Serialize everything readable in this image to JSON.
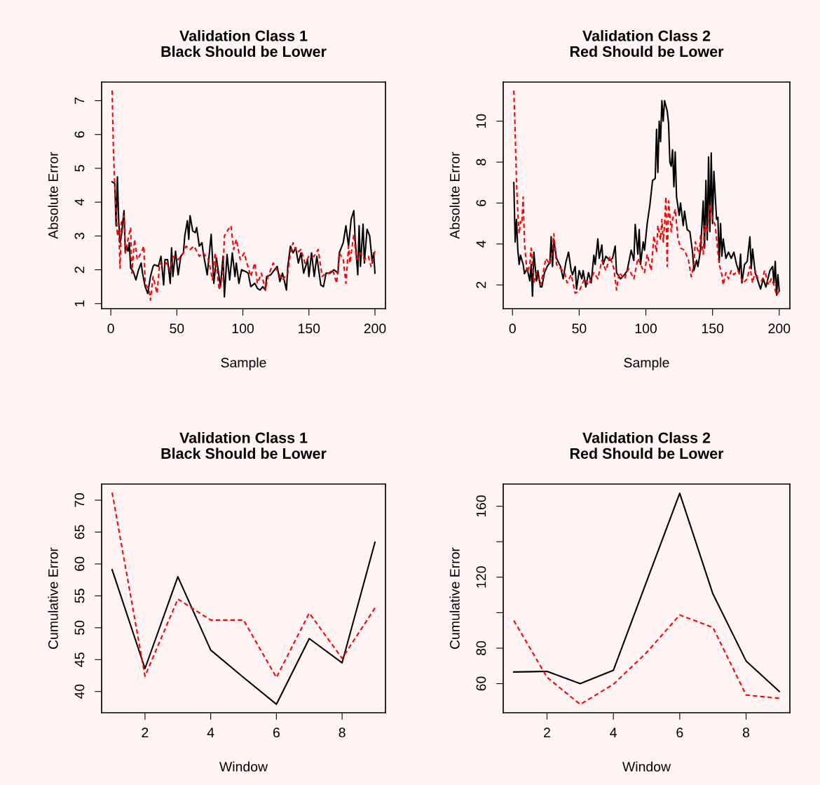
{
  "chart_data": [
    {
      "type": "line",
      "title": "Validation Class 1\nBlack Should be Lower",
      "xlabel": "Sample",
      "ylabel": "Absolute Error",
      "xlim": [
        -6.96,
        207.96
      ],
      "ylim": [
        0.85,
        7.55
      ],
      "xticks": [
        0,
        50,
        100,
        150,
        200
      ],
      "yticks": [
        1,
        2,
        3,
        4,
        5,
        6,
        7
      ],
      "series": [
        {
          "color": "#000000",
          "line_style": "solid",
          "x": [
            1,
            3,
            4,
            5,
            6,
            7,
            8,
            10,
            11,
            12,
            13,
            14,
            15,
            17,
            19,
            21,
            23,
            24,
            26,
            28,
            30,
            32,
            33,
            36,
            38,
            40,
            41,
            43,
            45,
            46,
            47,
            49,
            51,
            53,
            55,
            56,
            58,
            59,
            60,
            62,
            64,
            65,
            67,
            69,
            70,
            73,
            76,
            78,
            80,
            83,
            85,
            86,
            88,
            90,
            92,
            94,
            95,
            97,
            99,
            102,
            104,
            106,
            109,
            111,
            113,
            115,
            117,
            118,
            121,
            124,
            126,
            128,
            130,
            133,
            134,
            136,
            138,
            140,
            142,
            144,
            146,
            149,
            150,
            152,
            154,
            156,
            159,
            161,
            163,
            166,
            169,
            172,
            173,
            176,
            178,
            180,
            182,
            184,
            185,
            187,
            188,
            189,
            191,
            192,
            194,
            196,
            198,
            199,
            200
          ],
          "values": [
            4.6,
            4.55,
            3.3,
            4.75,
            3.4,
            2.8,
            3.0,
            3.75,
            2.5,
            2.7,
            2.55,
            2.8,
            2.05,
            1.95,
            1.7,
            2.0,
            2.2,
            1.9,
            1.5,
            1.3,
            1.8,
            2.1,
            2.15,
            2.1,
            2.4,
            1.55,
            2.3,
            2.3,
            1.6,
            2.65,
            1.8,
            2.55,
            1.85,
            2.4,
            2.5,
            3.0,
            3.45,
            2.9,
            3.6,
            3.15,
            3.1,
            3.25,
            2.7,
            2.8,
            2.5,
            1.85,
            3.05,
            1.6,
            2.35,
            1.5,
            2.4,
            1.2,
            2.45,
            1.7,
            2.5,
            1.8,
            2.2,
            1.6,
            2.0,
            1.95,
            1.9,
            1.5,
            1.6,
            1.45,
            1.4,
            1.5,
            1.4,
            1.8,
            1.85,
            2.0,
            2.1,
            1.65,
            1.9,
            1.4,
            2.1,
            2.7,
            2.5,
            2.65,
            2.2,
            2.5,
            1.9,
            2.3,
            1.8,
            2.5,
            1.8,
            2.4,
            1.55,
            1.5,
            1.9,
            1.9,
            2.0,
            1.9,
            2.5,
            2.8,
            3.3,
            2.7,
            3.5,
            3.75,
            2.9,
            1.85,
            3.3,
            2.1,
            3.35,
            2.2,
            3.2,
            3.0,
            2.2,
            2.5,
            1.9
          ]
        },
        {
          "color": "#ff0000",
          "line_style": "dashed",
          "x": [
            1,
            2,
            3,
            5,
            6,
            7,
            8,
            10,
            11,
            13,
            15,
            16,
            18,
            20,
            23,
            25,
            26,
            29,
            30,
            32,
            35,
            37,
            40,
            42,
            45,
            47,
            51,
            55,
            57,
            60,
            63,
            67,
            70,
            74,
            77,
            79,
            82,
            85,
            86,
            89,
            91,
            93,
            95,
            98,
            101,
            103,
            106,
            109,
            111,
            114,
            117,
            119,
            123,
            127,
            130,
            134,
            136,
            138,
            141,
            144,
            147,
            150,
            154,
            157,
            160,
            163,
            165,
            168,
            171,
            173,
            176,
            178,
            180,
            181,
            184,
            186,
            189,
            192,
            195,
            197,
            200
          ],
          "values": [
            7.3,
            5.5,
            4.5,
            3.0,
            3.2,
            2.05,
            3.4,
            3.6,
            2.5,
            2.9,
            3.25,
            1.9,
            2.9,
            2.3,
            2.5,
            2.7,
            1.6,
            1.4,
            1.1,
            1.8,
            1.3,
            2.2,
            2.1,
            2.2,
            2.0,
            2.4,
            2.3,
            2.5,
            2.7,
            2.6,
            2.7,
            2.4,
            2.5,
            2.3,
            1.7,
            2.5,
            1.4,
            1.9,
            3.0,
            3.2,
            3.3,
            2.6,
            2.9,
            2.3,
            2.5,
            2.2,
            1.8,
            2.2,
            1.6,
            1.9,
            1.4,
            1.8,
            2.2,
            1.9,
            1.7,
            1.9,
            2.5,
            2.8,
            2.5,
            2.6,
            2.2,
            2.4,
            2.4,
            2.6,
            1.8,
            1.9,
            1.9,
            2.0,
            1.6,
            2.5,
            2.3,
            1.6,
            2.7,
            2.2,
            3.05,
            2.3,
            2.5,
            2.3,
            2.4,
            2.1,
            2.55
          ]
        }
      ]
    },
    {
      "type": "line",
      "title": "Validation Class 2\nRed Should be Lower",
      "xlabel": "Sample",
      "ylabel": "Absolute Error",
      "xlim": [
        -6.96,
        207.96
      ],
      "ylim": [
        0.84,
        11.91
      ],
      "xticks": [
        0,
        50,
        100,
        150,
        200
      ],
      "yticks": [
        2,
        4,
        6,
        8,
        10
      ],
      "series": [
        {
          "color": "#000000",
          "line_style": "solid",
          "x": [
            1,
            2,
            3,
            4,
            5,
            6,
            8,
            9,
            11,
            13,
            14,
            15,
            16,
            18,
            19,
            21,
            22,
            24,
            26,
            28,
            29,
            30,
            31,
            33,
            36,
            38,
            40,
            42,
            44,
            45,
            47,
            48,
            50,
            52,
            53,
            55,
            57,
            59,
            61,
            62,
            64,
            65,
            67,
            68,
            70,
            73,
            75,
            77,
            78,
            81,
            84,
            86,
            89,
            91,
            92,
            94,
            95,
            96,
            98,
            99,
            101,
            103,
            105,
            107,
            108,
            109,
            110,
            111,
            112,
            113,
            114,
            116,
            117,
            118,
            119,
            120,
            121,
            122,
            123,
            125,
            126,
            128,
            129,
            131,
            133,
            135,
            136,
            138,
            139,
            141,
            143,
            144,
            145,
            146,
            147,
            148,
            149,
            150,
            151,
            153,
            154,
            155,
            156,
            157,
            158,
            160,
            162,
            164,
            166,
            168,
            170,
            171,
            172,
            174,
            176,
            178,
            179,
            180,
            182,
            184,
            186,
            188,
            190,
            193,
            195,
            196,
            197,
            198,
            199,
            200
          ],
          "values": [
            7.0,
            4.1,
            5.2,
            3.7,
            3.0,
            3.45,
            3.0,
            2.55,
            2.8,
            2.2,
            3.0,
            1.45,
            3.6,
            2.2,
            2.7,
            1.9,
            1.9,
            2.6,
            2.9,
            3.1,
            4.35,
            2.9,
            4.2,
            3.3,
            2.9,
            2.3,
            3.1,
            3.6,
            2.7,
            2.5,
            2.9,
            1.8,
            2.7,
            2.3,
            2.7,
            1.9,
            2.6,
            2.1,
            3.45,
            3.0,
            4.25,
            3.3,
            3.95,
            3.0,
            3.4,
            3.2,
            3.3,
            3.9,
            2.6,
            2.3,
            2.5,
            2.7,
            3.7,
            3.2,
            4.95,
            3.5,
            4.7,
            3.0,
            4.1,
            3.7,
            5.0,
            5.9,
            7.1,
            7.2,
            9.6,
            7.5,
            10.0,
            9.0,
            11.0,
            10.0,
            11.0,
            10.5,
            9.9,
            8.0,
            7.8,
            8.6,
            6.8,
            8.5,
            6.3,
            5.4,
            6.0,
            4.9,
            5.6,
            4.7,
            4.6,
            3.6,
            2.7,
            3.2,
            2.9,
            3.7,
            6.1,
            3.8,
            7.1,
            4.2,
            8.25,
            4.6,
            8.45,
            5.0,
            7.55,
            5.2,
            5.3,
            3.1,
            5.0,
            3.4,
            4.25,
            3.3,
            3.6,
            3.3,
            3.6,
            3.0,
            2.6,
            3.5,
            2.1,
            3.0,
            3.15,
            4.35,
            2.8,
            3.75,
            2.6,
            2.2,
            1.8,
            2.3,
            1.9,
            2.7,
            2.9,
            2.1,
            3.15,
            1.5,
            2.5,
            1.7
          ]
        },
        {
          "color": "#ff0000",
          "line_style": "dashed",
          "x": [
            1,
            2,
            3,
            4,
            5,
            6,
            7,
            8,
            9,
            11,
            13,
            14,
            16,
            18,
            21,
            23,
            25,
            28,
            30,
            31,
            33,
            36,
            39,
            41,
            44,
            47,
            50,
            54,
            57,
            61,
            64,
            67,
            70,
            73,
            76,
            78,
            80,
            84,
            87,
            91,
            94,
            96,
            99,
            101,
            104,
            106,
            108,
            109,
            111,
            112,
            113,
            114,
            115,
            116,
            117,
            119,
            120,
            122,
            124,
            126,
            129,
            132,
            134,
            136,
            137,
            140,
            141,
            143,
            144,
            146,
            148,
            150,
            152,
            154,
            155,
            157,
            158,
            160,
            162,
            164,
            166,
            169,
            171,
            173,
            176,
            178,
            180,
            182,
            184,
            187,
            189,
            192,
            194,
            196,
            198,
            200
          ],
          "values": [
            11.5,
            9.5,
            7.0,
            5.5,
            4.5,
            5.1,
            5.0,
            6.3,
            4.0,
            2.6,
            3.0,
            3.8,
            2.1,
            2.6,
            2.0,
            2.6,
            3.3,
            3.0,
            3.7,
            4.5,
            3.0,
            2.8,
            2.6,
            2.1,
            2.5,
            1.6,
            1.7,
            2.3,
            2.0,
            2.6,
            2.3,
            3.2,
            2.7,
            3.4,
            2.8,
            1.75,
            2.6,
            2.3,
            2.8,
            2.3,
            3.3,
            3.0,
            2.6,
            3.5,
            2.7,
            4.4,
            3.6,
            4.9,
            4.2,
            5.2,
            4.1,
            4.9,
            6.3,
            2.9,
            6.1,
            4.6,
            5.2,
            5.7,
            4.3,
            3.8,
            3.7,
            3.2,
            2.4,
            3.0,
            4.1,
            3.5,
            4.4,
            3.5,
            4.9,
            4.6,
            5.9,
            5.3,
            4.9,
            3.6,
            3.0,
            2.5,
            2.0,
            2.6,
            2.3,
            2.7,
            2.5,
            2.7,
            2.4,
            2.1,
            2.3,
            2.9,
            2.1,
            2.7,
            2.3,
            2.2,
            2.7,
            2.0,
            2.3,
            2.0,
            1.5,
            1.7
          ]
        }
      ]
    },
    {
      "type": "line",
      "title": "Validation Class 1\nBlack Should be Lower",
      "xlabel": "Window",
      "ylabel": "Cumulative Error",
      "x": [
        1,
        2,
        3,
        4,
        5,
        6,
        7,
        8,
        9
      ],
      "xlim": [
        0.68,
        9.32
      ],
      "ylim": [
        36.67,
        72.53
      ],
      "xticks": [
        2,
        4,
        6,
        8
      ],
      "yticks": [
        40,
        45,
        50,
        55,
        60,
        65,
        70
      ],
      "series": [
        {
          "color": "#000000",
          "line_style": "solid",
          "values": [
            59.1,
            43.6,
            58.0,
            46.5,
            42.2,
            38.0,
            48.3,
            44.5,
            63.4
          ]
        },
        {
          "color": "#ff0000",
          "line_style": "dashed",
          "values": [
            71.2,
            42.4,
            54.5,
            51.2,
            51.2,
            42.2,
            52.3,
            45.2,
            53.1
          ]
        }
      ]
    },
    {
      "type": "line",
      "title": "Validation Class 2\nRed Should be Lower",
      "xlabel": "Window",
      "ylabel": "Cumulative Error",
      "x": [
        1,
        2,
        3,
        4,
        5,
        6,
        7,
        8,
        9
      ],
      "xlim": [
        0.68,
        9.32
      ],
      "ylim": [
        43.6,
        172.5
      ],
      "xticks": [
        2,
        4,
        6,
        8
      ],
      "yticks": [
        60,
        80,
        {
          "value": 100,
          "label": null
        },
        120,
        {
          "value": 140,
          "label": null
        },
        160
      ],
      "series": [
        {
          "color": "#000000",
          "line_style": "solid",
          "values": [
            66.6,
            66.9,
            60.0,
            67.5,
            117.5,
            167.3,
            110.6,
            72.8,
            55.6
          ]
        },
        {
          "color": "#ff0000",
          "line_style": "dashed",
          "values": [
            95.6,
            63.6,
            48.3,
            59.6,
            77.5,
            98.7,
            91.7,
            53.6,
            51.7
          ]
        }
      ]
    }
  ]
}
